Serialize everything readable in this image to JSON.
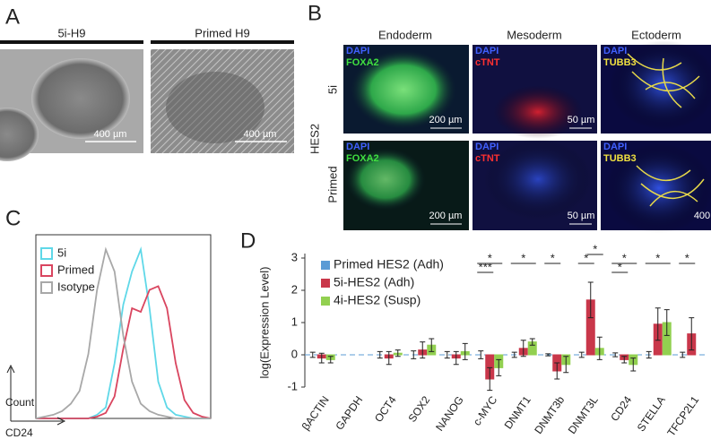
{
  "panels": {
    "a": {
      "label": "A",
      "columns": [
        {
          "title": "5i-H9",
          "scale_bar": "400 µm"
        },
        {
          "title": "Primed H9",
          "scale_bar": "400 µm"
        }
      ]
    },
    "b": {
      "label": "B",
      "columns": [
        "Endoderm",
        "Mesoderm",
        "Ectoderm"
      ],
      "row_group": "HES2",
      "rows": [
        "5i",
        "Primed"
      ],
      "stains": [
        [
          "DAPI",
          "FOXA2"
        ],
        [
          "DAPI",
          "cTNT"
        ],
        [
          "DAPI",
          "TUBB3"
        ]
      ],
      "scale_bars": [
        [
          "200 µm",
          "50 µm"
        ],
        [
          "200 µm",
          "50 µm",
          "400"
        ]
      ]
    },
    "c": {
      "label": "C"
    },
    "d": {
      "label": "D"
    }
  },
  "chart_data": [
    {
      "type": "line",
      "x_label": "CD24",
      "y_label": "Count",
      "x": [
        0,
        5,
        10,
        15,
        20,
        25,
        30,
        35,
        40,
        45,
        50,
        55,
        60,
        65,
        70,
        75,
        80,
        85,
        90,
        95,
        100
      ],
      "series": [
        {
          "name": "5i",
          "color": "#5fd8e8",
          "values": [
            0,
            0,
            0,
            0,
            0,
            0,
            0,
            2,
            6,
            30,
            62,
            80,
            92,
            60,
            20,
            6,
            2,
            1,
            0,
            0,
            0
          ]
        },
        {
          "name": "Primed",
          "color": "#d9455f",
          "values": [
            0,
            0,
            0,
            0,
            0,
            0,
            0,
            1,
            3,
            12,
            38,
            60,
            58,
            70,
            72,
            60,
            30,
            10,
            3,
            1,
            0
          ]
        },
        {
          "name": "Isotype",
          "color": "#a8a8a8",
          "values": [
            0,
            1,
            2,
            4,
            8,
            15,
            35,
            70,
            92,
            80,
            45,
            20,
            8,
            4,
            2,
            1,
            0,
            0,
            0,
            0,
            0
          ]
        }
      ]
    },
    {
      "type": "bar",
      "y_label": "log(Expression Level)",
      "ylim": [
        -1,
        3
      ],
      "yticks": [
        -1,
        0,
        1,
        2,
        3
      ],
      "categories": [
        "βACTIN",
        "GAPDH",
        "OCT4",
        "SOX2",
        "NANOG",
        "c-MYC",
        "DNMT1",
        "DNMT3b",
        "DNMT3L",
        "CD24",
        "STELLA",
        "TFCP2L1"
      ],
      "series": [
        {
          "name": "Primed HES2 (Adh)",
          "color": "#5b9bd5",
          "values": [
            0,
            0,
            0,
            0,
            0,
            0,
            0,
            0,
            0,
            0,
            0,
            0
          ],
          "errors": [
            0.08,
            0,
            0.1,
            0.12,
            0.1,
            0.12,
            0.08,
            0.03,
            0.08,
            0.06,
            0.1,
            0.08
          ]
        },
        {
          "name": "5i-HES2 (Adh)",
          "color": "#c9374a",
          "values": [
            -0.1,
            0,
            -0.1,
            0.15,
            -0.1,
            -0.75,
            0.2,
            -0.5,
            1.7,
            -0.15,
            0.95,
            0.65
          ],
          "errors": [
            0.15,
            0,
            0.2,
            0.25,
            0.2,
            0.35,
            0.25,
            0.25,
            0.55,
            0.1,
            0.5,
            0.5
          ]
        },
        {
          "name": "4i-HES2 (Susp)",
          "color": "#92d050",
          "values": [
            -0.15,
            0,
            0.05,
            0.3,
            0.1,
            -0.4,
            0.4,
            -0.3,
            0.2,
            -0.3,
            1.0,
            null
          ],
          "errors": [
            0.1,
            0,
            0.1,
            0.2,
            0.25,
            0.25,
            0.1,
            0.25,
            0.35,
            0.2,
            0.4,
            null
          ]
        }
      ],
      "annotations": [
        "*",
        "***",
        "*",
        "*",
        "*",
        "*",
        "*",
        "*",
        "*",
        "*"
      ]
    }
  ]
}
